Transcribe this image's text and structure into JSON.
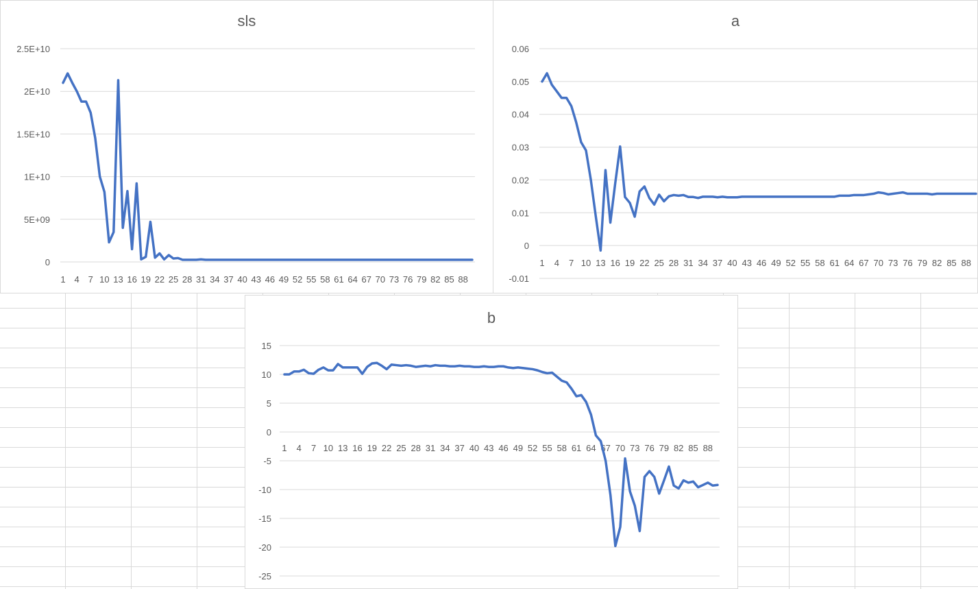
{
  "chart_data": [
    {
      "id": "sls",
      "type": "line",
      "title": "sls",
      "xlabel": "",
      "ylabel": "",
      "ylim": [
        0,
        25000000000
      ],
      "y_ticks": [
        0,
        5000000000,
        10000000000,
        15000000000,
        20000000000,
        25000000000
      ],
      "y_tick_labels": [
        "0",
        "5E+09",
        "1E+10",
        "1.5E+10",
        "2E+10",
        "2.5E+10"
      ],
      "x_tick_labels": [
        "1",
        "4",
        "7",
        "10",
        "13",
        "16",
        "19",
        "22",
        "25",
        "28",
        "31",
        "34",
        "37",
        "40",
        "43",
        "46",
        "49",
        "52",
        "55",
        "58",
        "61",
        "64",
        "67",
        "70",
        "73",
        "76",
        "79",
        "82",
        "85",
        "88"
      ],
      "x_count": 90,
      "grid": true,
      "legend": "none",
      "color": "#4472c4",
      "values": [
        21000000000,
        22100000000,
        21000000000,
        20000000000,
        18800000000,
        18800000000,
        17500000000,
        14500000000,
        10000000000,
        8200000000,
        2300000000,
        3500000000,
        21300000000,
        4000000000,
        8300000000,
        1500000000,
        9200000000,
        300000000,
        600000000,
        4700000000,
        500000000,
        1000000000,
        300000000,
        800000000,
        400000000,
        450000000,
        250000000,
        250000000,
        250000000,
        250000000,
        300000000,
        250000000,
        250000000,
        250000000,
        250000000,
        250000000,
        250000000,
        250000000,
        250000000,
        250000000,
        250000000,
        250000000,
        250000000,
        250000000,
        250000000,
        250000000,
        250000000,
        250000000,
        250000000,
        250000000,
        250000000,
        250000000,
        250000000,
        250000000,
        250000000,
        250000000,
        250000000,
        250000000,
        250000000,
        250000000,
        250000000,
        250000000,
        250000000,
        250000000,
        250000000,
        250000000,
        250000000,
        250000000,
        250000000,
        250000000,
        250000000,
        250000000,
        250000000,
        250000000,
        250000000,
        250000000,
        250000000,
        250000000,
        250000000,
        250000000,
        250000000,
        250000000,
        250000000,
        250000000,
        250000000,
        250000000,
        250000000,
        250000000,
        250000000,
        250000000
      ]
    },
    {
      "id": "a",
      "type": "line",
      "title": "a",
      "xlabel": "",
      "ylabel": "",
      "ylim": [
        -0.01,
        0.06
      ],
      "y_ticks": [
        -0.01,
        0,
        0.01,
        0.02,
        0.03,
        0.04,
        0.05,
        0.06
      ],
      "y_tick_labels": [
        "-0.01",
        "0",
        "0.01",
        "0.02",
        "0.03",
        "0.04",
        "0.05",
        "0.06"
      ],
      "x_tick_labels": [
        "1",
        "4",
        "7",
        "10",
        "13",
        "16",
        "19",
        "22",
        "25",
        "28",
        "31",
        "34",
        "37",
        "40",
        "43",
        "46",
        "49",
        "52",
        "55",
        "58",
        "61",
        "64",
        "67",
        "70",
        "73",
        "76",
        "79",
        "82",
        "85",
        "88"
      ],
      "x_count": 90,
      "grid": true,
      "legend": "none",
      "color": "#4472c4",
      "values": [
        0.05,
        0.0525,
        0.049,
        0.047,
        0.045,
        0.045,
        0.0425,
        0.0375,
        0.0315,
        0.029,
        0.02,
        0.009,
        -0.0015,
        0.023,
        0.007,
        0.019,
        0.0302,
        0.0148,
        0.013,
        0.0088,
        0.0165,
        0.018,
        0.0145,
        0.0125,
        0.0155,
        0.0135,
        0.015,
        0.0154,
        0.0152,
        0.0154,
        0.0148,
        0.0148,
        0.0145,
        0.0149,
        0.0149,
        0.0149,
        0.0147,
        0.0149,
        0.0147,
        0.0147,
        0.0147,
        0.0149,
        0.0149,
        0.0149,
        0.0149,
        0.0149,
        0.0149,
        0.0149,
        0.0149,
        0.0149,
        0.0149,
        0.0149,
        0.0149,
        0.0149,
        0.0149,
        0.0149,
        0.0149,
        0.0149,
        0.0149,
        0.0149,
        0.0149,
        0.0152,
        0.0152,
        0.0152,
        0.0154,
        0.0154,
        0.0154,
        0.0156,
        0.0158,
        0.0162,
        0.016,
        0.0156,
        0.0158,
        0.016,
        0.0162,
        0.0158,
        0.0158,
        0.0158,
        0.0158,
        0.0158,
        0.0156,
        0.0158,
        0.0158,
        0.0158,
        0.0158,
        0.0158,
        0.0158,
        0.0158,
        0.0158,
        0.0158
      ]
    },
    {
      "id": "b",
      "type": "line",
      "title": "b",
      "xlabel": "",
      "ylabel": "",
      "ylim": [
        -25,
        15
      ],
      "y_ticks": [
        -25,
        -20,
        -15,
        -10,
        -5,
        0,
        5,
        10,
        15
      ],
      "y_tick_labels": [
        "-25",
        "-20",
        "-15",
        "-10",
        "-5",
        "0",
        "5",
        "10",
        "15"
      ],
      "x_tick_labels": [
        "1",
        "4",
        "7",
        "10",
        "13",
        "16",
        "19",
        "22",
        "25",
        "28",
        "31",
        "34",
        "37",
        "40",
        "43",
        "46",
        "49",
        "52",
        "55",
        "58",
        "61",
        "64",
        "67",
        "70",
        "73",
        "76",
        "79",
        "82",
        "85",
        "88"
      ],
      "x_count": 90,
      "grid": true,
      "legend": "none",
      "color": "#4472c4",
      "values": [
        10,
        10,
        10.5,
        10.5,
        10.8,
        10.2,
        10.1,
        10.8,
        11.2,
        10.7,
        10.7,
        11.8,
        11.2,
        11.2,
        11.2,
        11.2,
        10.1,
        11.3,
        11.9,
        12,
        11.5,
        10.9,
        11.7,
        11.6,
        11.5,
        11.6,
        11.5,
        11.3,
        11.4,
        11.5,
        11.4,
        11.6,
        11.5,
        11.5,
        11.4,
        11.4,
        11.5,
        11.4,
        11.4,
        11.3,
        11.3,
        11.4,
        11.3,
        11.3,
        11.4,
        11.4,
        11.2,
        11.1,
        11.2,
        11.1,
        11,
        10.9,
        10.7,
        10.4,
        10.2,
        10.3,
        9.6,
        8.9,
        8.6,
        7.5,
        6.2,
        6.4,
        5.2,
        3,
        -0.6,
        -1.6,
        -5,
        -11,
        -19.8,
        -16.5,
        -4.6,
        -10.3,
        -12.8,
        -17.2,
        -7.8,
        -6.8,
        -7.8,
        -10.7,
        -8.4,
        -6,
        -9.3,
        -9.8,
        -8.4,
        -8.8,
        -8.6,
        -9.6,
        -9.2,
        -8.8,
        -9.3,
        -9.2
      ]
    }
  ]
}
